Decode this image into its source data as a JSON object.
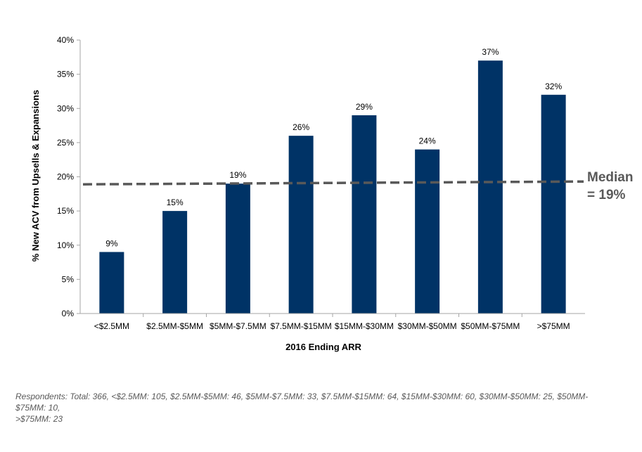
{
  "chart_data": {
    "type": "bar",
    "categories": [
      "<$2.5MM",
      "$2.5MM-$5MM",
      "$5MM-$7.5MM",
      "$7.5MM-$15MM",
      "$15MM-$30MM",
      "$30MM-$50MM",
      "$50MM-$75MM",
      ">$75MM"
    ],
    "values": [
      9,
      15,
      19,
      26,
      29,
      24,
      37,
      32
    ],
    "data_labels": [
      "9%",
      "15%",
      "19%",
      "26%",
      "29%",
      "24%",
      "37%",
      "32%"
    ],
    "xlabel": "2016 Ending ARR",
    "ylabel": "% New ACV from Upsells & Expansions",
    "ylim": [
      0,
      40
    ],
    "yticks": [
      "0%",
      "5%",
      "10%",
      "15%",
      "20%",
      "25%",
      "30%",
      "35%",
      "40%"
    ],
    "grid": false,
    "bar_color": "#003366",
    "median": {
      "value": 19,
      "label_line1": "Median",
      "label_line2": "= 19%",
      "color": "#595959",
      "style": "dashed"
    }
  },
  "footnote": {
    "line1": "Respondents: Total: 366, <$2.5MM: 105, $2.5MM-$5MM: 46, $5MM-$7.5MM: 33, $7.5MM-$15MM: 64, $15MM-$30MM: 60, $30MM-$50MM: 25, $50MM-",
    "line2": "$75MM: 10,",
    "line3": ">$75MM: 23"
  }
}
